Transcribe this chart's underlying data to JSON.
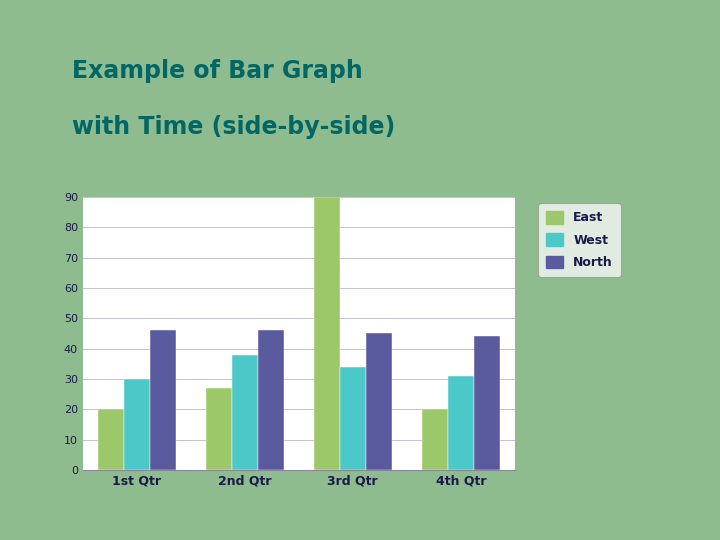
{
  "title_line1": "Example of Bar Graph",
  "title_line2": "with Time (side-by-side)",
  "categories": [
    "1st Qtr",
    "2nd Qtr",
    "3rd Qtr",
    "4th Qtr"
  ],
  "series": {
    "East": [
      20,
      27,
      90,
      20
    ],
    "West": [
      30,
      38,
      34,
      31
    ],
    "North": [
      46,
      46,
      45,
      44
    ]
  },
  "bar_colors": {
    "East": "#9dc86a",
    "West": "#4dc8c8",
    "North": "#5a5a9e"
  },
  "legend_labels": [
    "East",
    "West",
    "North"
  ],
  "ylim": [
    0,
    90
  ],
  "yticks": [
    0,
    10,
    20,
    30,
    40,
    50,
    60,
    70,
    80,
    90
  ],
  "title_color": "#006666",
  "title_fontsize": 17,
  "bg_green": "#8fbc8f",
  "separator_color": "#1a3050",
  "chart_bg": "#ffffff",
  "white_area_color": "#ffffff"
}
